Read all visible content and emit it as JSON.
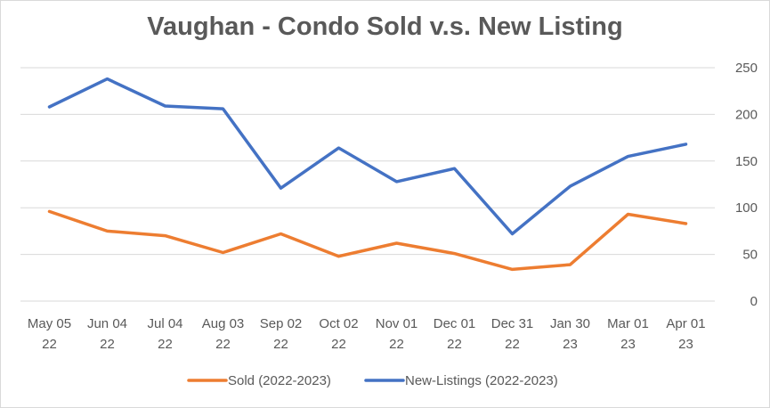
{
  "chart_data": {
    "type": "line",
    "title": "Vaughan - Condo Sold v.s. New Listing",
    "categories": [
      [
        "May 05",
        "22"
      ],
      [
        "Jun 04",
        "22"
      ],
      [
        "Jul 04",
        "22"
      ],
      [
        "Aug 03",
        "22"
      ],
      [
        "Sep 02",
        "22"
      ],
      [
        "Oct 02",
        "22"
      ],
      [
        "Nov 01",
        "22"
      ],
      [
        "Dec 01",
        "22"
      ],
      [
        "Dec 31",
        "22"
      ],
      [
        "Jan 30",
        "23"
      ],
      [
        "Mar 01",
        "23"
      ],
      [
        "Apr 01",
        "23"
      ]
    ],
    "series": [
      {
        "name": "Sold (2022-2023)",
        "color": "#ED7D31",
        "values": [
          96,
          75,
          70,
          52,
          72,
          48,
          62,
          51,
          34,
          39,
          93,
          83
        ]
      },
      {
        "name": "New-Listings (2022-2023)",
        "color": "#4472C4",
        "values": [
          208,
          238,
          209,
          206,
          121,
          164,
          128,
          142,
          72,
          123,
          155,
          168
        ]
      }
    ],
    "y_axis": {
      "position": "right",
      "ylim": [
        0,
        250
      ],
      "ticks": [
        0,
        50,
        100,
        150,
        200,
        250
      ]
    },
    "grid": true,
    "legend_position": "bottom"
  }
}
